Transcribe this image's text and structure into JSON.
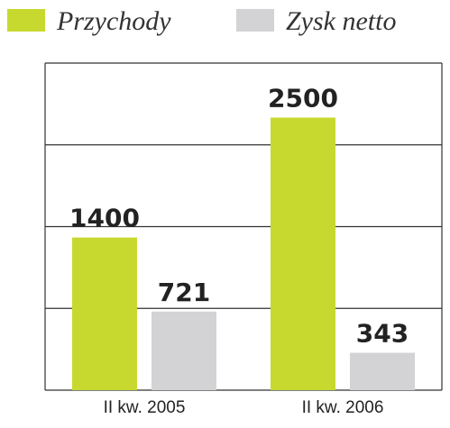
{
  "chart_data": {
    "type": "bar",
    "categories": [
      "II kw. 2005",
      "II kw. 2006"
    ],
    "series": [
      {
        "name": "Przychody",
        "color": "#c7d92f",
        "values": [
          1400,
          2500
        ]
      },
      {
        "name": "Zysk netto",
        "color": "#d3d3d5",
        "values": [
          721,
          343
        ]
      }
    ],
    "ylim": [
      0,
      3000
    ],
    "yticks": [
      0,
      750,
      1500,
      2250,
      3000
    ],
    "grid": true
  }
}
